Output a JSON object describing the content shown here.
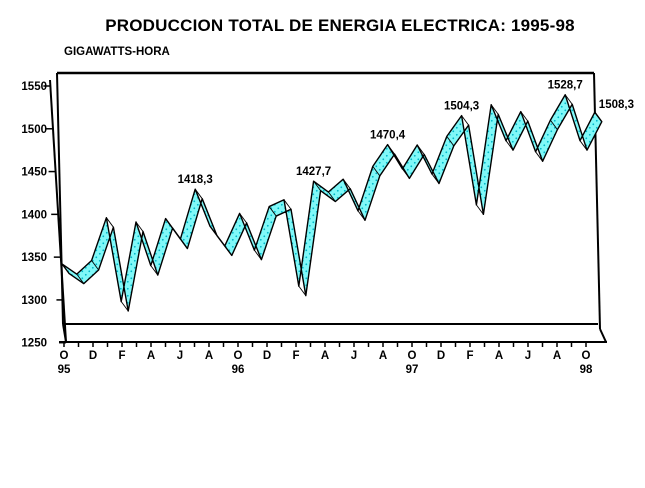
{
  "header": {
    "title": "PRODUCCION TOTAL DE ENERGIA ELECTRICA: 1995-98",
    "subtitle": "GIGAWATTS-HORA"
  },
  "chart_data": {
    "type": "line",
    "title": "PRODUCCION TOTAL DE ENERGIA ELECTRICA: 1995-98",
    "ylabel": "GIGAWATTS-HORA",
    "xlabel": "",
    "grid": "off",
    "legend": "none",
    "ylim": [
      1250,
      1550
    ],
    "yticks": [
      1250,
      1300,
      1350,
      1400,
      1450,
      1500,
      1550
    ],
    "x": [
      "Oct-95",
      "Nov-95",
      "Dec-95",
      "Jan-96",
      "Feb-96",
      "Mar-96",
      "Apr-96",
      "May-96",
      "Jun-96",
      "Jul-96",
      "Aug-96",
      "Sep-96",
      "Oct-96",
      "Nov-96",
      "Dec-96",
      "Jan-97",
      "Feb-97",
      "Mar-97",
      "Apr-97",
      "May-97",
      "Jun-97",
      "Jul-97",
      "Aug-97",
      "Sep-97",
      "Oct-97",
      "Nov-97",
      "Dec-97",
      "Jan-98",
      "Feb-98",
      "Mar-98",
      "Apr-98",
      "May-98",
      "Jun-98",
      "Jul-98",
      "Aug-98",
      "Sep-98",
      "Oct-98"
    ],
    "values": [
      1331,
      1319,
      1335,
      1385,
      1287,
      1380,
      1329,
      1384,
      1360,
      1418.3,
      1375,
      1352,
      1390,
      1347,
      1398,
      1406,
      1305,
      1427.7,
      1415,
      1430,
      1393,
      1445,
      1470.4,
      1442,
      1470,
      1436,
      1480,
      1504.3,
      1400,
      1517,
      1475,
      1509,
      1462,
      1499,
      1528.7,
      1475,
      1508.3
    ],
    "xtick_labels": [
      "O",
      "D",
      "F",
      "A",
      "J",
      "A",
      "O",
      "D",
      "F",
      "A",
      "J",
      "A",
      "O",
      "D",
      "F",
      "A",
      "J",
      "A",
      "O"
    ],
    "xtick_every": 2,
    "year_labels": [
      {
        "text": "95",
        "month_index": 0
      },
      {
        "text": "96",
        "month_index": 12
      },
      {
        "text": "97",
        "month_index": 24
      },
      {
        "text": "98",
        "month_index": 36
      }
    ],
    "point_labels": [
      {
        "month_index": 9,
        "text": "1418,3"
      },
      {
        "month_index": 17,
        "text": "1427,7"
      },
      {
        "month_index": 22,
        "text": "1470,4"
      },
      {
        "month_index": 27,
        "text": "1504,3"
      },
      {
        "month_index": 34,
        "text": "1528,7"
      },
      {
        "month_index": 36,
        "text": "1508,3",
        "placement": "right"
      }
    ],
    "colors": {
      "ribbon_fill": "#80F8F8",
      "ribbon_dots": "#00B8C8",
      "outline": "#000000",
      "text": "#000000",
      "background": "#FFFFFF"
    }
  }
}
